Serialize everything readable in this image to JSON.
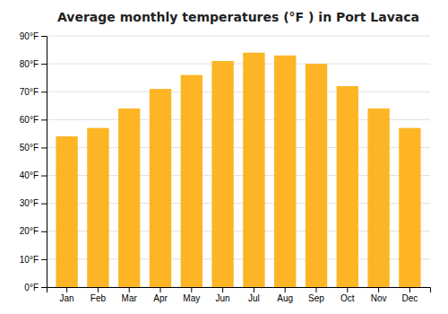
{
  "chart_data": {
    "type": "bar",
    "title": "Average monthly temperatures (°F ) in Port Lavaca",
    "categories": [
      "Jan",
      "Feb",
      "Mar",
      "Apr",
      "May",
      "Jun",
      "Jul",
      "Aug",
      "Sep",
      "Oct",
      "Nov",
      "Dec"
    ],
    "values": [
      54,
      57,
      64,
      71,
      76,
      81,
      84,
      83,
      80,
      72,
      64,
      57
    ],
    "color": "#FDB525",
    "ylim": [
      0,
      90
    ],
    "yticks": [
      {
        "value": 0,
        "label": "0°F"
      },
      {
        "value": 10,
        "label": "10°F"
      },
      {
        "value": 20,
        "label": "20°F"
      },
      {
        "value": 30,
        "label": "30°F"
      },
      {
        "value": 40,
        "label": "40°F"
      },
      {
        "value": 50,
        "label": "50°F"
      },
      {
        "value": 60,
        "label": "60°F"
      },
      {
        "value": 70,
        "label": "70°F"
      },
      {
        "value": 80,
        "label": "80°F"
      },
      {
        "value": 90,
        "label": "90°F"
      }
    ],
    "grid": true
  }
}
